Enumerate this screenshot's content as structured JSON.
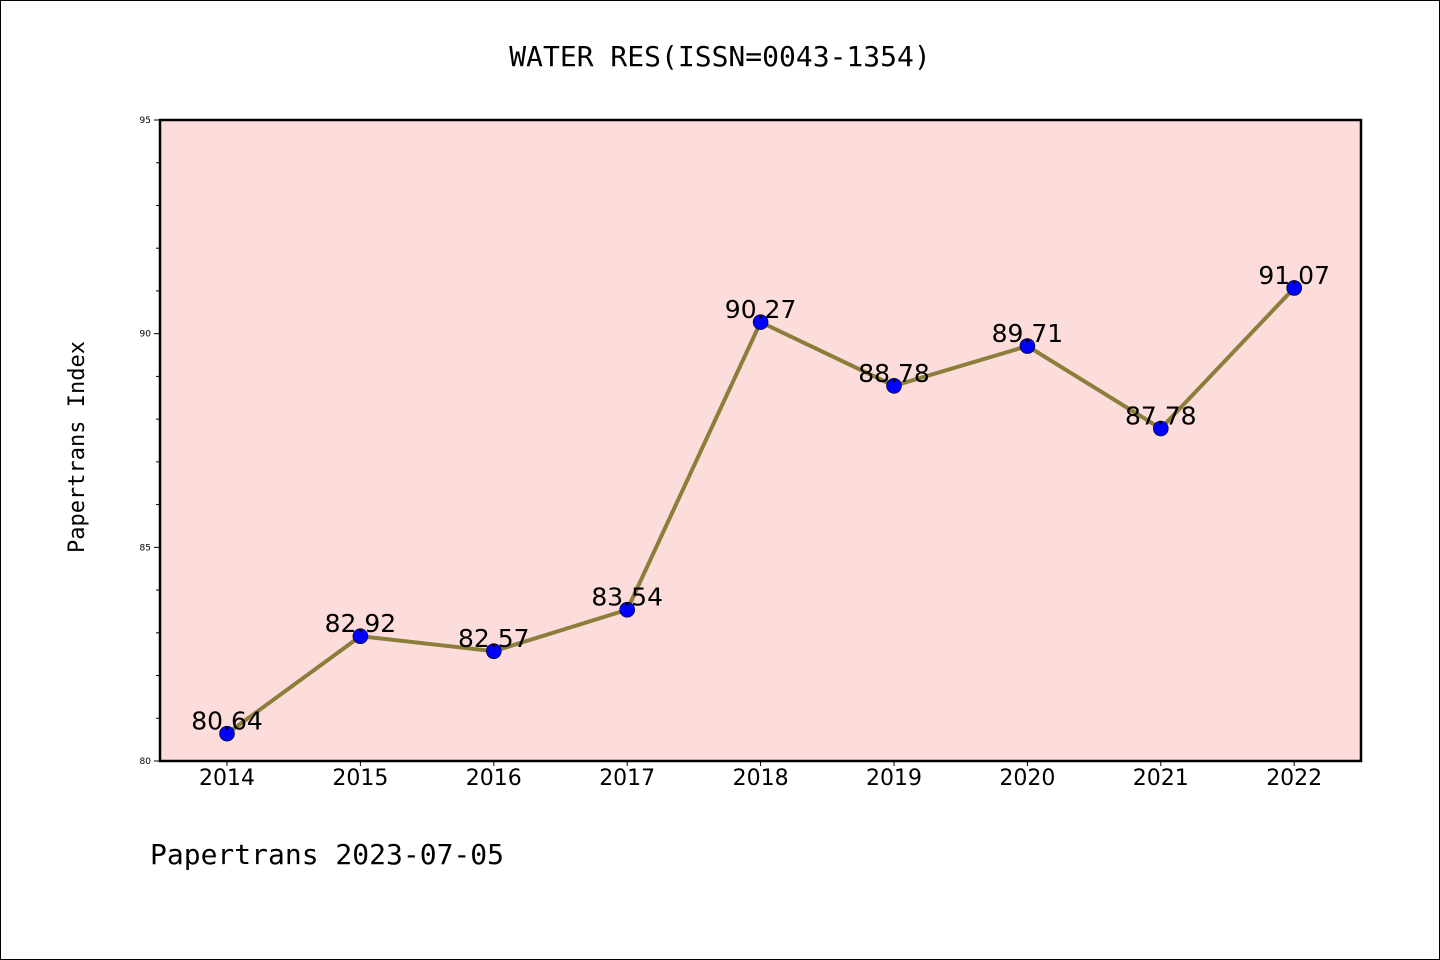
{
  "chart_data": {
    "type": "line",
    "title": "WATER RES(ISSN=0043-1354)",
    "xlabel": "",
    "ylabel": "Papertrans Index",
    "categories": [
      "2014",
      "2015",
      "2016",
      "2017",
      "2018",
      "2019",
      "2020",
      "2021",
      "2022"
    ],
    "series": [
      {
        "values": [
          80.64,
          82.92,
          82.57,
          83.54,
          90.27,
          88.78,
          89.71,
          87.78,
          91.07
        ],
        "labels": [
          "80.64",
          "82.92",
          "82.57",
          "83.54",
          "90.27",
          "88.78",
          "89.71",
          "87.78",
          "91.07"
        ]
      }
    ],
    "ylim": [
      80,
      95
    ],
    "yticks": [
      "80",
      "85",
      "90",
      "95"
    ],
    "grid": false,
    "legend": "none",
    "colors": {
      "plot_background": "#fddcdc",
      "line": "#8b7d3a",
      "marker": "#0000ff"
    }
  },
  "footer": "Papertrans 2023-07-05"
}
